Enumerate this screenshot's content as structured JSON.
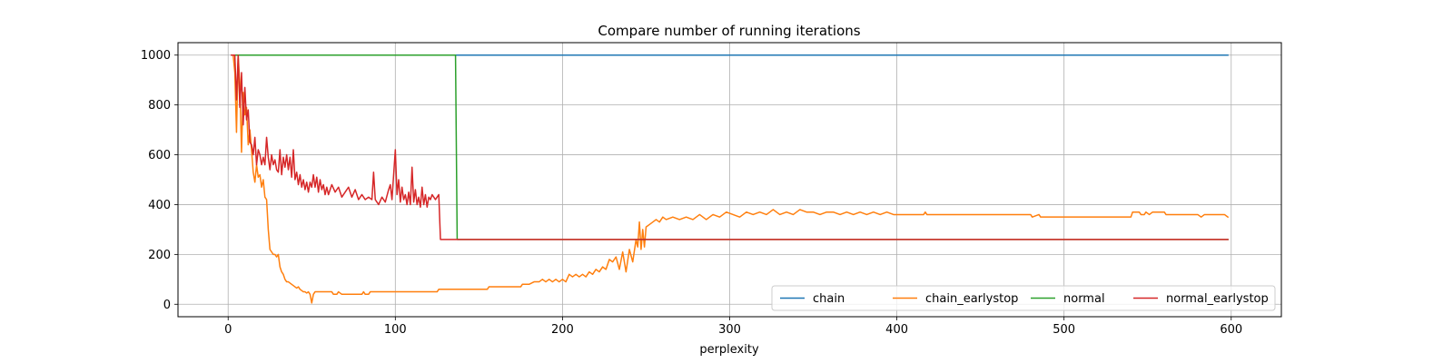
{
  "chart_data": {
    "type": "line",
    "title": "Compare number of running iterations",
    "xlabel": "perplexity",
    "ylabel": "",
    "xlim": [
      -30,
      630
    ],
    "ylim": [
      -50,
      1050
    ],
    "xticks": [
      0,
      100,
      200,
      300,
      400,
      500,
      600
    ],
    "yticks": [
      0,
      200,
      400,
      600,
      800,
      1000
    ],
    "grid": true,
    "legend": {
      "placement": "lower-right",
      "columns": 4
    },
    "series": [
      {
        "name": "chain",
        "color": "#1f77b4",
        "points": [
          [
            2,
            1000
          ],
          [
            598,
            1000
          ]
        ]
      },
      {
        "name": "chain_earlystop",
        "color": "#ff7f0e",
        "points": [
          [
            2,
            1000
          ],
          [
            3,
            1000
          ],
          [
            4,
            930
          ],
          [
            5,
            690
          ],
          [
            6,
            1000
          ],
          [
            7,
            880
          ],
          [
            8,
            610
          ],
          [
            9,
            850
          ],
          [
            10,
            760
          ],
          [
            11,
            790
          ],
          [
            12,
            640
          ],
          [
            13,
            700
          ],
          [
            14,
            620
          ],
          [
            15,
            530
          ],
          [
            16,
            490
          ],
          [
            17,
            560
          ],
          [
            18,
            510
          ],
          [
            19,
            520
          ],
          [
            20,
            470
          ],
          [
            21,
            500
          ],
          [
            22,
            430
          ],
          [
            23,
            420
          ],
          [
            24,
            300
          ],
          [
            25,
            220
          ],
          [
            26,
            210
          ],
          [
            27,
            200
          ],
          [
            28,
            200
          ],
          [
            29,
            190
          ],
          [
            30,
            200
          ],
          [
            31,
            150
          ],
          [
            32,
            130
          ],
          [
            33,
            120
          ],
          [
            34,
            100
          ],
          [
            35,
            90
          ],
          [
            36,
            90
          ],
          [
            37,
            85
          ],
          [
            38,
            80
          ],
          [
            39,
            75
          ],
          [
            40,
            70
          ],
          [
            41,
            65
          ],
          [
            42,
            70
          ],
          [
            43,
            60
          ],
          [
            44,
            55
          ],
          [
            45,
            50
          ],
          [
            46,
            50
          ],
          [
            47,
            45
          ],
          [
            48,
            50
          ],
          [
            49,
            40
          ],
          [
            50,
            5
          ],
          [
            51,
            40
          ],
          [
            52,
            50
          ],
          [
            55,
            50
          ],
          [
            60,
            50
          ],
          [
            62,
            50
          ],
          [
            63,
            40
          ],
          [
            65,
            40
          ],
          [
            66,
            50
          ],
          [
            68,
            40
          ],
          [
            72,
            40
          ],
          [
            76,
            40
          ],
          [
            80,
            40
          ],
          [
            81,
            50
          ],
          [
            82,
            40
          ],
          [
            84,
            40
          ],
          [
            85,
            50
          ],
          [
            100,
            50
          ],
          [
            110,
            50
          ],
          [
            125,
            50
          ],
          [
            126,
            60
          ],
          [
            140,
            60
          ],
          [
            155,
            60
          ],
          [
            156,
            70
          ],
          [
            175,
            70
          ],
          [
            176,
            80
          ],
          [
            180,
            80
          ],
          [
            183,
            90
          ],
          [
            186,
            90
          ],
          [
            188,
            100
          ],
          [
            190,
            90
          ],
          [
            192,
            100
          ],
          [
            194,
            90
          ],
          [
            196,
            100
          ],
          [
            198,
            90
          ],
          [
            200,
            100
          ],
          [
            202,
            90
          ],
          [
            204,
            120
          ],
          [
            206,
            110
          ],
          [
            208,
            120
          ],
          [
            210,
            110
          ],
          [
            212,
            120
          ],
          [
            214,
            110
          ],
          [
            216,
            130
          ],
          [
            218,
            120
          ],
          [
            220,
            140
          ],
          [
            222,
            130
          ],
          [
            224,
            150
          ],
          [
            226,
            140
          ],
          [
            228,
            180
          ],
          [
            230,
            170
          ],
          [
            232,
            190
          ],
          [
            234,
            140
          ],
          [
            236,
            210
          ],
          [
            238,
            130
          ],
          [
            240,
            220
          ],
          [
            242,
            170
          ],
          [
            244,
            260
          ],
          [
            245,
            230
          ],
          [
            246,
            330
          ],
          [
            247,
            220
          ],
          [
            248,
            300
          ],
          [
            249,
            230
          ],
          [
            250,
            310
          ],
          [
            252,
            320
          ],
          [
            254,
            330
          ],
          [
            256,
            340
          ],
          [
            258,
            330
          ],
          [
            260,
            350
          ],
          [
            262,
            340
          ],
          [
            266,
            350
          ],
          [
            270,
            340
          ],
          [
            274,
            350
          ],
          [
            278,
            340
          ],
          [
            282,
            360
          ],
          [
            286,
            340
          ],
          [
            290,
            360
          ],
          [
            294,
            350
          ],
          [
            298,
            370
          ],
          [
            302,
            360
          ],
          [
            306,
            350
          ],
          [
            310,
            370
          ],
          [
            314,
            360
          ],
          [
            318,
            370
          ],
          [
            322,
            360
          ],
          [
            326,
            380
          ],
          [
            330,
            360
          ],
          [
            334,
            370
          ],
          [
            338,
            360
          ],
          [
            342,
            380
          ],
          [
            346,
            370
          ],
          [
            350,
            370
          ],
          [
            354,
            360
          ],
          [
            358,
            370
          ],
          [
            362,
            370
          ],
          [
            366,
            360
          ],
          [
            370,
            370
          ],
          [
            374,
            360
          ],
          [
            378,
            370
          ],
          [
            382,
            360
          ],
          [
            386,
            370
          ],
          [
            390,
            360
          ],
          [
            394,
            370
          ],
          [
            398,
            360
          ],
          [
            402,
            360
          ],
          [
            410,
            360
          ],
          [
            416,
            360
          ],
          [
            417,
            370
          ],
          [
            418,
            360
          ],
          [
            440,
            360
          ],
          [
            470,
            360
          ],
          [
            480,
            360
          ],
          [
            481,
            350
          ],
          [
            485,
            360
          ],
          [
            486,
            350
          ],
          [
            530,
            350
          ],
          [
            540,
            350
          ],
          [
            541,
            370
          ],
          [
            545,
            370
          ],
          [
            546,
            360
          ],
          [
            548,
            360
          ],
          [
            549,
            370
          ],
          [
            551,
            360
          ],
          [
            553,
            370
          ],
          [
            560,
            370
          ],
          [
            561,
            360
          ],
          [
            580,
            360
          ],
          [
            582,
            350
          ],
          [
            584,
            360
          ],
          [
            596,
            360
          ],
          [
            598,
            350
          ]
        ]
      },
      {
        "name": "normal",
        "color": "#2ca02c",
        "points": [
          [
            2,
            1000
          ],
          [
            136,
            1000
          ],
          [
            137,
            260
          ],
          [
            598,
            260
          ]
        ]
      },
      {
        "name": "normal_earlystop",
        "color": "#d62728",
        "points": [
          [
            2,
            1000
          ],
          [
            3,
            1000
          ],
          [
            4,
            1000
          ],
          [
            5,
            820
          ],
          [
            6,
            1000
          ],
          [
            7,
            790
          ],
          [
            8,
            930
          ],
          [
            9,
            720
          ],
          [
            10,
            870
          ],
          [
            11,
            740
          ],
          [
            12,
            780
          ],
          [
            13,
            650
          ],
          [
            14,
            640
          ],
          [
            15,
            600
          ],
          [
            16,
            670
          ],
          [
            17,
            560
          ],
          [
            18,
            620
          ],
          [
            19,
            600
          ],
          [
            20,
            560
          ],
          [
            21,
            590
          ],
          [
            22,
            560
          ],
          [
            23,
            670
          ],
          [
            24,
            590
          ],
          [
            25,
            540
          ],
          [
            26,
            600
          ],
          [
            27,
            560
          ],
          [
            28,
            580
          ],
          [
            29,
            540
          ],
          [
            30,
            530
          ],
          [
            31,
            620
          ],
          [
            32,
            520
          ],
          [
            33,
            590
          ],
          [
            34,
            550
          ],
          [
            35,
            600
          ],
          [
            36,
            540
          ],
          [
            37,
            590
          ],
          [
            38,
            510
          ],
          [
            39,
            620
          ],
          [
            40,
            500
          ],
          [
            41,
            530
          ],
          [
            42,
            480
          ],
          [
            43,
            520
          ],
          [
            44,
            470
          ],
          [
            45,
            500
          ],
          [
            46,
            460
          ],
          [
            47,
            490
          ],
          [
            48,
            450
          ],
          [
            49,
            490
          ],
          [
            50,
            470
          ],
          [
            51,
            520
          ],
          [
            52,
            470
          ],
          [
            53,
            510
          ],
          [
            54,
            450
          ],
          [
            55,
            500
          ],
          [
            56,
            460
          ],
          [
            57,
            480
          ],
          [
            58,
            440
          ],
          [
            59,
            470
          ],
          [
            60,
            440
          ],
          [
            62,
            480
          ],
          [
            64,
            450
          ],
          [
            66,
            470
          ],
          [
            68,
            430
          ],
          [
            70,
            450
          ],
          [
            72,
            470
          ],
          [
            74,
            430
          ],
          [
            76,
            460
          ],
          [
            78,
            420
          ],
          [
            80,
            440
          ],
          [
            82,
            420
          ],
          [
            84,
            430
          ],
          [
            86,
            420
          ],
          [
            87,
            530
          ],
          [
            88,
            420
          ],
          [
            90,
            400
          ],
          [
            92,
            430
          ],
          [
            94,
            410
          ],
          [
            96,
            460
          ],
          [
            97,
            480
          ],
          [
            98,
            420
          ],
          [
            99,
            520
          ],
          [
            100,
            620
          ],
          [
            101,
            440
          ],
          [
            102,
            500
          ],
          [
            103,
            410
          ],
          [
            104,
            470
          ],
          [
            105,
            420
          ],
          [
            106,
            440
          ],
          [
            107,
            400
          ],
          [
            108,
            450
          ],
          [
            109,
            400
          ],
          [
            110,
            550
          ],
          [
            111,
            410
          ],
          [
            112,
            460
          ],
          [
            113,
            400
          ],
          [
            114,
            430
          ],
          [
            115,
            390
          ],
          [
            116,
            470
          ],
          [
            117,
            400
          ],
          [
            118,
            440
          ],
          [
            119,
            390
          ],
          [
            120,
            430
          ],
          [
            121,
            420
          ],
          [
            122,
            440
          ],
          [
            123,
            430
          ],
          [
            124,
            420
          ],
          [
            125,
            430
          ],
          [
            126,
            440
          ],
          [
            127,
            260
          ],
          [
            598,
            260
          ]
        ]
      }
    ]
  }
}
